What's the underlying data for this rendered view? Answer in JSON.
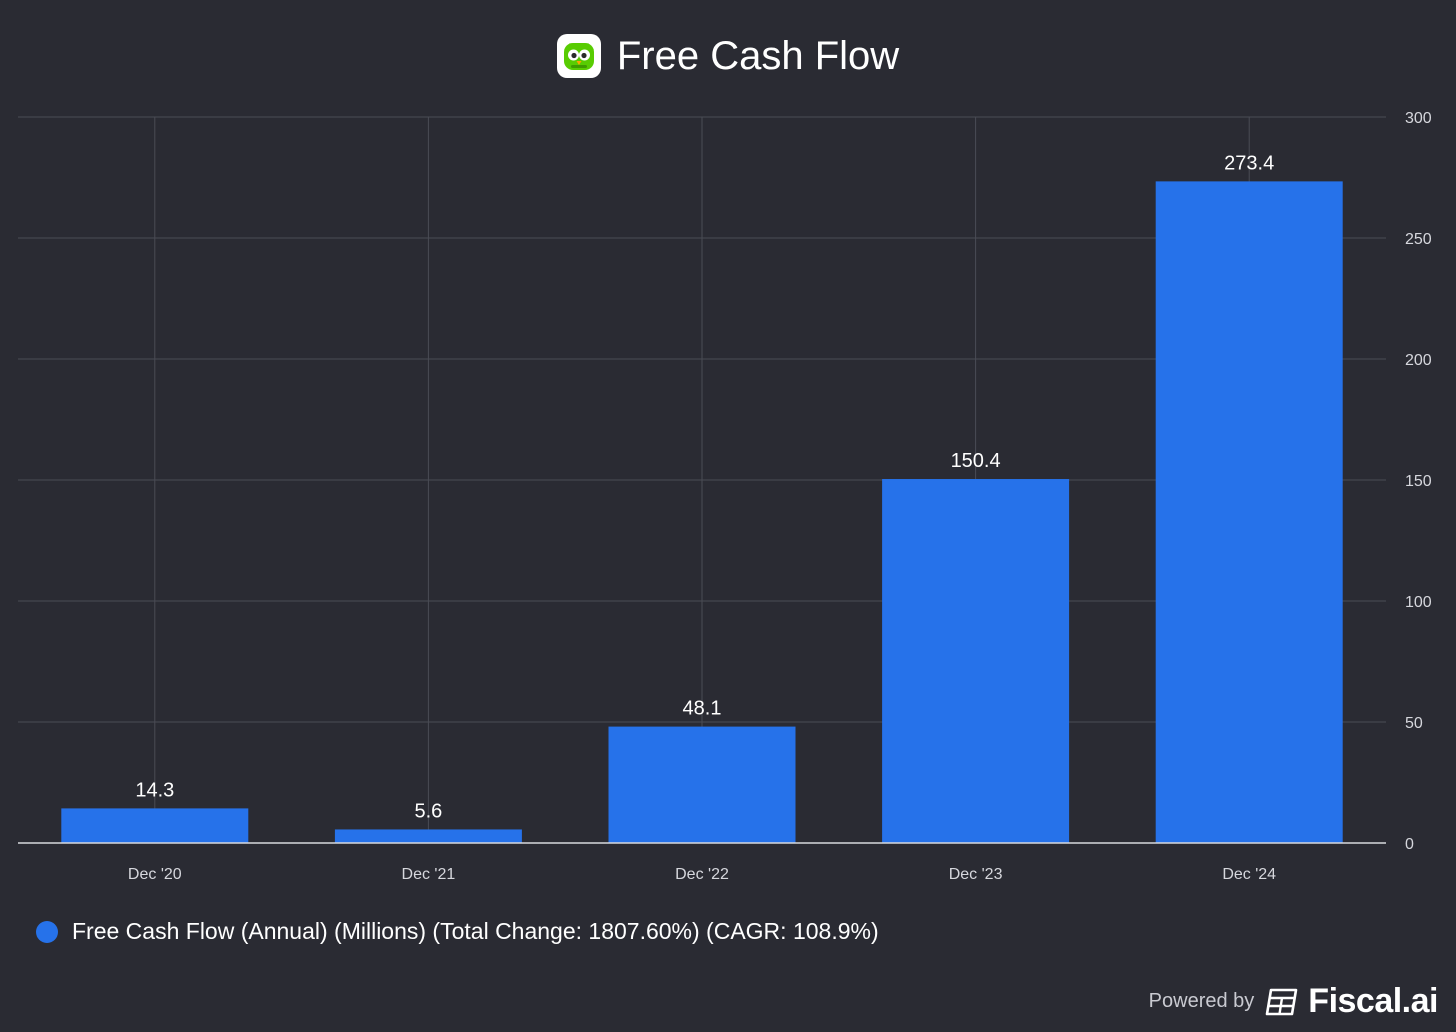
{
  "chart_data": {
    "type": "bar",
    "title": "Free Cash Flow",
    "categories": [
      "Dec '20",
      "Dec '21",
      "Dec '22",
      "Dec '23",
      "Dec '24"
    ],
    "series": [
      {
        "name": "Free Cash Flow (Annual) (Millions) (Total Change: 1807.60%) (CAGR: 108.9%)",
        "values": [
          14.3,
          5.6,
          48.1,
          150.4,
          273.4
        ],
        "labels": [
          "14.3",
          "5.6",
          "48.1",
          "150.4",
          "273.4"
        ],
        "color": "#2672ea"
      }
    ],
    "yticks": [
      0,
      50,
      100,
      150,
      200,
      250,
      300
    ],
    "ylim": [
      0,
      300
    ],
    "y_axis_side": "right",
    "grid": true,
    "legend_position": "bottom-left"
  },
  "footer": {
    "powered_by": "Powered by",
    "brand": "Fiscal.ai"
  },
  "colors": {
    "background": "#2a2b33",
    "bar": "#2672ea",
    "grid": "#4a4c55",
    "logo_green": "#58cc02"
  }
}
